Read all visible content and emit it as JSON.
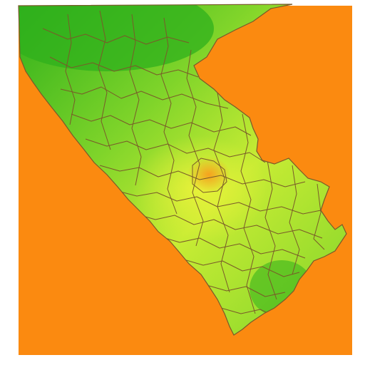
{
  "map": {
    "colors": {
      "page_background": "#ffffff",
      "outside_region": "#fb8a10",
      "region_dark": "#2fb01c",
      "region_mid": "#7fd42a",
      "region_light": "#c8ec34",
      "region_bright": "#eaf23a",
      "hotspot": "#f6a21e",
      "boundary": "#7a5a2a"
    },
    "legend": [],
    "labels": []
  }
}
